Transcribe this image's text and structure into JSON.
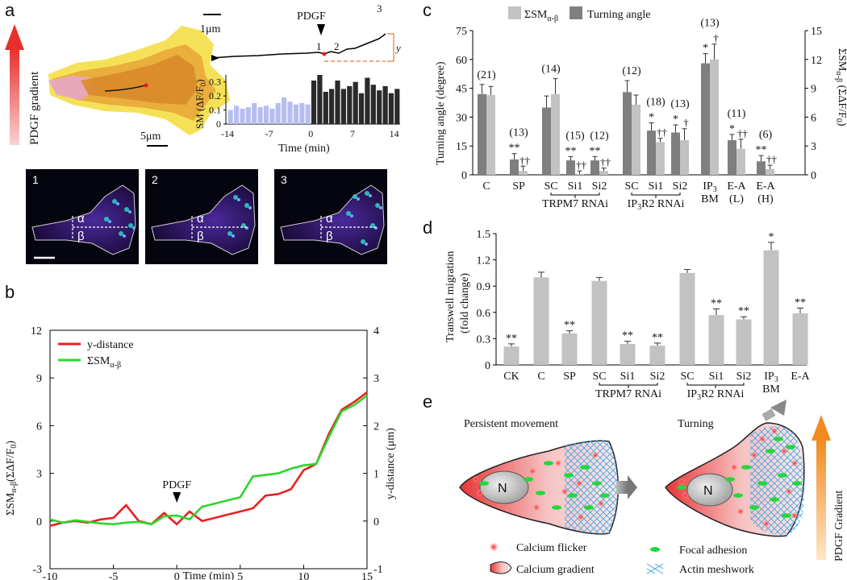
{
  "panel_labels": {
    "a": "a",
    "b": "b",
    "c": "c",
    "d": "d",
    "e": "e"
  },
  "colors": {
    "red": "#e8201c",
    "green": "#2dd52d",
    "dark_bar": "#7f7f7f",
    "light_bar": "#c2c2c2",
    "lavender": "#b8bdf0",
    "black_bar": "#2a2a2a",
    "orange": "#f29a2e"
  },
  "panel_a": {
    "gradient_label": "PDGF gradient",
    "scale_5um": "5μm",
    "scale_1um": "1μm",
    "pdgf_label": "PDGF",
    "trace_marks": [
      "1",
      "2",
      "3"
    ],
    "y_label": "y",
    "sm_ylabel": "SM (ΔF/F",
    "sm_ylabel_sub": "0",
    "sm_ylabel_end": ")",
    "time_xlabel": "Time (min)",
    "yticks": [
      "0",
      "0.1",
      "0.2",
      "0.3"
    ],
    "xticks": [
      "-14",
      "-7",
      "0",
      "7",
      "14"
    ],
    "micro_frames": [
      {
        "num": "1",
        "alpha": "α",
        "beta": "β"
      },
      {
        "num": "2",
        "alpha": "α",
        "beta": "β"
      },
      {
        "num": "3",
        "alpha": "α",
        "beta": "β"
      }
    ],
    "bar_values_pre": [
      0.1,
      0.13,
      0.11,
      0.12,
      0.15,
      0.12,
      0.13,
      0.11,
      0.15,
      0.19,
      0.16,
      0.14,
      0.15,
      0.14
    ],
    "bar_values_post": [
      0.31,
      0.35,
      0.23,
      0.25,
      0.31,
      0.25,
      0.27,
      0.3,
      0.22,
      0.33,
      0.28,
      0.24,
      0.27,
      0.22,
      0.25
    ]
  },
  "chart_data": [
    {
      "type": "line",
      "panel": "b",
      "title": "",
      "xlabel": "Time (min)",
      "ylabel_left": "ΣSMα-β(ΣΔF/F0)",
      "ylabel_right": "y-distance (μm)",
      "xlim": [
        -10,
        15
      ],
      "ylim_left": [
        -3,
        12
      ],
      "ylim_right": [
        -1,
        4
      ],
      "x_ticks": [
        "-10",
        "-5",
        "0",
        "5",
        "10",
        "15"
      ],
      "y_left_ticks": [
        "-3",
        "0",
        "3",
        "6",
        "9",
        "12"
      ],
      "y_right_ticks": [
        "-1",
        "0",
        "1",
        "2",
        "3",
        "4"
      ],
      "annotation": "PDGF",
      "legend": [
        "y-distance",
        "ΣSMα-β"
      ],
      "series": [
        {
          "name": "y-distance",
          "axis": "left",
          "x": [
            -10,
            -9,
            -8,
            -7,
            -6,
            -5,
            -4,
            -3,
            -2,
            -1,
            0,
            1,
            2,
            3,
            4,
            5,
            6,
            7,
            8,
            9,
            10,
            11,
            12,
            13,
            14,
            15
          ],
          "values": [
            -0.3,
            -0.1,
            0.0,
            -0.1,
            0.1,
            0.2,
            1.0,
            0.0,
            -0.2,
            0.5,
            -0.2,
            0.6,
            0.0,
            0.2,
            0.4,
            0.6,
            0.8,
            1.6,
            1.7,
            2.0,
            3.2,
            3.6,
            5.5,
            7.0,
            7.5,
            8.1
          ]
        },
        {
          "name": "ΣSMα-β",
          "axis": "left",
          "x": [
            -10,
            -9,
            -8,
            -7,
            -6,
            -5,
            -4,
            -3,
            -2,
            -1,
            0,
            1,
            2,
            3,
            4,
            5,
            6,
            7,
            8,
            9,
            10,
            11,
            12,
            13,
            14,
            15
          ],
          "values": [
            0.1,
            -0.1,
            0.05,
            -0.05,
            -0.15,
            -0.2,
            -0.1,
            -0.05,
            -0.2,
            0.3,
            0.35,
            0.1,
            0.9,
            1.1,
            1.3,
            1.5,
            2.8,
            2.9,
            3.0,
            3.3,
            3.5,
            3.6,
            5.3,
            6.9,
            7.3,
            7.9
          ]
        }
      ]
    },
    {
      "type": "bar",
      "panel": "c",
      "ylabel_left": "Turning angle (degree)",
      "ylabel_right": "ΣSMα-β (ΣΔF/F0)",
      "ylim_left": [
        0,
        75
      ],
      "ylim_right": [
        0,
        15
      ],
      "y_left_ticks": [
        "0",
        "15",
        "30",
        "45",
        "60",
        "75"
      ],
      "y_right_ticks": [
        "0",
        "3",
        "6",
        "9",
        "12",
        "15"
      ],
      "legend": [
        "ΣSMα-β",
        "Turning angle"
      ],
      "categories": [
        "C",
        "SP",
        "SC",
        "Si1",
        "Si2",
        "SC",
        "Si1",
        "Si2",
        "IP3 BM",
        "E-A (L)",
        "E-A (H)"
      ],
      "group_labels": [
        "TRPM7 RNAi",
        "IP3R2 RNAi"
      ],
      "n_labels": [
        "(21)",
        "(13)",
        "(14)",
        "(15)",
        "(12)",
        "(12)",
        "(18)",
        "(13)",
        "(13)",
        "(11)",
        "(6)"
      ],
      "series": [
        {
          "name": "Turning angle",
          "values": [
            42,
            8,
            35,
            7.5,
            7.5,
            43,
            23,
            22,
            58,
            18,
            7
          ],
          "errors": [
            5,
            3,
            6,
            2,
            2,
            6,
            4,
            4,
            5,
            3,
            3
          ]
        },
        {
          "name": "ΣSMα-β",
          "values": [
            8.3,
            0.4,
            8.4,
            0.1,
            0.4,
            7.3,
            3.4,
            3.6,
            12,
            2.7,
            0.6
          ],
          "errors": [
            0.9,
            0.5,
            1.6,
            0.3,
            0.3,
            1,
            0.4,
            1.2,
            1.6,
            1,
            0.4
          ]
        }
      ],
      "sig_turn": [
        "",
        "**",
        "",
        "**",
        "**",
        "",
        "*",
        "*",
        "*",
        "*",
        "**"
      ],
      "sig_sm": [
        "",
        "††",
        "",
        "††",
        "††",
        "",
        "††",
        "†",
        "†",
        "††",
        "††"
      ]
    },
    {
      "type": "bar",
      "panel": "d",
      "ylabel": "Transwell migration (fold change)",
      "ylim": [
        0,
        1.5
      ],
      "y_ticks": [
        "0",
        "0.3",
        "0.6",
        "0.9",
        "1.2",
        "1.5"
      ],
      "categories": [
        "CK",
        "C",
        "SP",
        "SC",
        "Si1",
        "Si2",
        "SC",
        "Si1",
        "Si2",
        "IP3 BM",
        "E-A"
      ],
      "group_labels": [
        "TRPM7 RNAi",
        "IP3R2 RNAi"
      ],
      "values": [
        0.21,
        1.0,
        0.36,
        0.96,
        0.24,
        0.22,
        1.05,
        0.57,
        0.52,
        1.31,
        0.59
      ],
      "errors": [
        0.03,
        0.06,
        0.03,
        0.04,
        0.03,
        0.03,
        0.04,
        0.07,
        0.03,
        0.09,
        0.06
      ],
      "sig": [
        "**",
        "",
        "**",
        "",
        "**",
        "**",
        "",
        "**",
        "**",
        "*",
        "**"
      ]
    }
  ],
  "panel_e": {
    "left_title": "Persistent movement",
    "right_title": "Turning",
    "nucleus": "N",
    "gradient_label": "PDGF Gradient",
    "legend": {
      "flicker": "Calcium flicker",
      "gradient": "Calcium gradient",
      "focal": "Focal adhesion",
      "actin": "Actin meshwork"
    }
  }
}
